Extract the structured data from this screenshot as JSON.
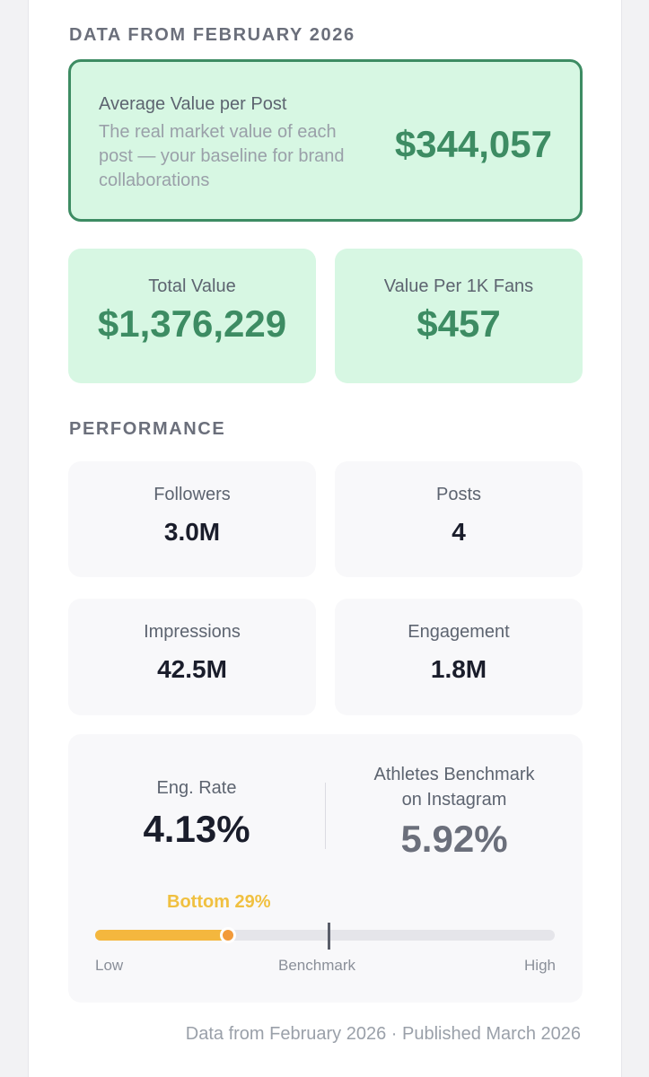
{
  "header": {
    "section_label": "DATA FROM FEBRUARY 2026"
  },
  "hero": {
    "title": "Average Value per Post",
    "description": "The real market value of each post — your baseline for brand collaborations",
    "value": "$344,057"
  },
  "value_cards": [
    {
      "label": "Total Value",
      "value": "$1,376,229"
    },
    {
      "label": "Value Per 1K Fans",
      "value": "$457"
    }
  ],
  "performance": {
    "section_label": "PERFORMANCE",
    "stats": [
      {
        "label": "Followers",
        "value": "3.0M"
      },
      {
        "label": "Posts",
        "value": "4"
      },
      {
        "label": "Impressions",
        "value": "42.5M"
      },
      {
        "label": "Engagement",
        "value": "1.8M"
      }
    ]
  },
  "engagement_rate": {
    "label": "Eng. Rate",
    "value": "4.13%",
    "benchmark_label_line1": "Athletes Benchmark",
    "benchmark_label_line2": "on Instagram",
    "benchmark_value": "5.92%",
    "position_tag": "Bottom 29%",
    "progress_fraction": 0.29,
    "benchmark_fraction": 0.505,
    "scale_low": "Low",
    "scale_mid": "Benchmark",
    "scale_high": "High"
  },
  "footer": {
    "text": "Data from February 2026 · Published March 2026"
  },
  "colors": {
    "accent_green": "#3d8c63",
    "card_green": "#d7f7e3",
    "bar_fill": "#f4b73e",
    "dot": "#f29a3a",
    "tag": "#f0c040"
  }
}
